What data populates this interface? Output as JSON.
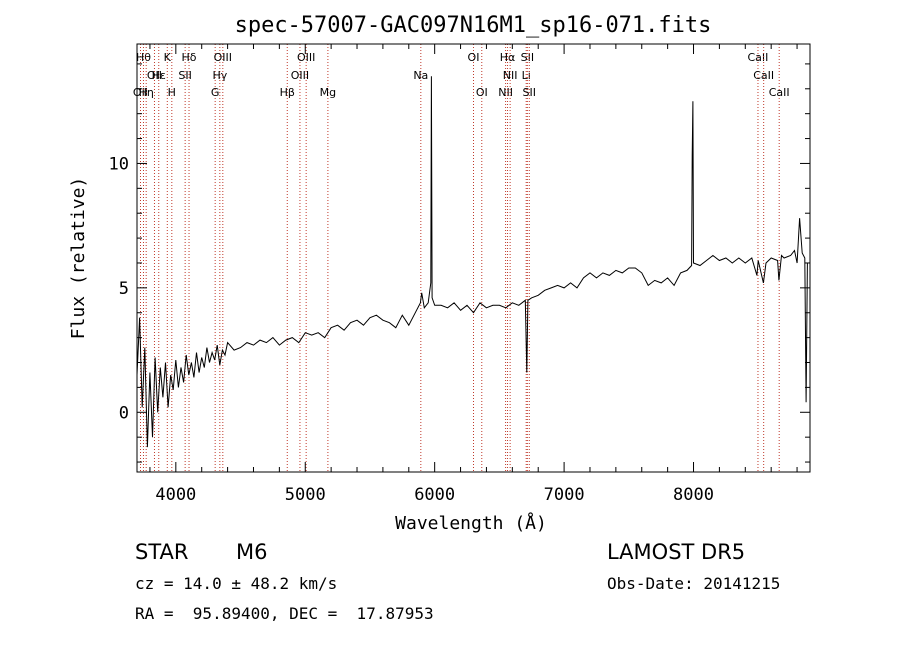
{
  "chart_data": {
    "type": "line",
    "title": "spec-57007-GAC097N16M1_sp16-071.fits",
    "xlabel": "Wavelength (Å)",
    "ylabel": "Flux (relative)",
    "xlim": [
      3700,
      8900
    ],
    "ylim": [
      -2.4,
      14.8
    ],
    "x_ticks": [
      4000,
      5000,
      6000,
      7000,
      8000
    ],
    "y_ticks": [
      0,
      5,
      10
    ],
    "grid": false,
    "line_color": "#000000",
    "marker_color": "#c0392b",
    "series": [
      {
        "points": [
          [
            3700,
            1.5
          ],
          [
            3720,
            3.8
          ],
          [
            3740,
            0.2
          ],
          [
            3760,
            2.6
          ],
          [
            3780,
            -1.4
          ],
          [
            3800,
            1.6
          ],
          [
            3820,
            -1.0
          ],
          [
            3840,
            2.2
          ],
          [
            3860,
            0.0
          ],
          [
            3880,
            1.8
          ],
          [
            3900,
            0.6
          ],
          [
            3920,
            2.0
          ],
          [
            3940,
            0.2
          ],
          [
            3960,
            1.5
          ],
          [
            3980,
            0.9
          ],
          [
            4000,
            2.1
          ],
          [
            4020,
            1.0
          ],
          [
            4040,
            1.8
          ],
          [
            4060,
            1.2
          ],
          [
            4080,
            2.3
          ],
          [
            4100,
            1.5
          ],
          [
            4120,
            2.0
          ],
          [
            4140,
            1.4
          ],
          [
            4160,
            2.4
          ],
          [
            4180,
            1.6
          ],
          [
            4200,
            2.2
          ],
          [
            4220,
            1.8
          ],
          [
            4240,
            2.6
          ],
          [
            4260,
            2.0
          ],
          [
            4280,
            2.4
          ],
          [
            4300,
            2.1
          ],
          [
            4320,
            2.7
          ],
          [
            4340,
            1.9
          ],
          [
            4360,
            2.5
          ],
          [
            4380,
            2.3
          ],
          [
            4400,
            2.8
          ],
          [
            4450,
            2.5
          ],
          [
            4500,
            2.6
          ],
          [
            4550,
            2.8
          ],
          [
            4600,
            2.7
          ],
          [
            4650,
            2.9
          ],
          [
            4700,
            2.8
          ],
          [
            4750,
            3.0
          ],
          [
            4800,
            2.7
          ],
          [
            4850,
            2.9
          ],
          [
            4900,
            3.0
          ],
          [
            4950,
            2.8
          ],
          [
            5000,
            3.2
          ],
          [
            5050,
            3.1
          ],
          [
            5100,
            3.2
          ],
          [
            5150,
            3.0
          ],
          [
            5200,
            3.4
          ],
          [
            5250,
            3.5
          ],
          [
            5300,
            3.3
          ],
          [
            5350,
            3.6
          ],
          [
            5400,
            3.7
          ],
          [
            5450,
            3.5
          ],
          [
            5500,
            3.8
          ],
          [
            5550,
            3.9
          ],
          [
            5600,
            3.7
          ],
          [
            5650,
            3.6
          ],
          [
            5700,
            3.4
          ],
          [
            5750,
            3.9
          ],
          [
            5800,
            3.5
          ],
          [
            5850,
            4.0
          ],
          [
            5890,
            4.4
          ],
          [
            5900,
            4.8
          ],
          [
            5920,
            4.2
          ],
          [
            5950,
            4.4
          ],
          [
            5970,
            5.2
          ],
          [
            5975,
            13.5
          ],
          [
            5980,
            4.6
          ],
          [
            6000,
            4.3
          ],
          [
            6050,
            4.3
          ],
          [
            6100,
            4.2
          ],
          [
            6150,
            4.4
          ],
          [
            6200,
            4.1
          ],
          [
            6250,
            4.3
          ],
          [
            6300,
            4.0
          ],
          [
            6350,
            4.4
          ],
          [
            6400,
            4.2
          ],
          [
            6450,
            4.3
          ],
          [
            6500,
            4.3
          ],
          [
            6550,
            4.2
          ],
          [
            6600,
            4.4
          ],
          [
            6650,
            4.3
          ],
          [
            6700,
            4.5
          ],
          [
            6712,
            1.6
          ],
          [
            6720,
            4.5
          ],
          [
            6750,
            4.6
          ],
          [
            6800,
            4.7
          ],
          [
            6850,
            4.9
          ],
          [
            6900,
            5.0
          ],
          [
            6950,
            5.1
          ],
          [
            7000,
            5.0
          ],
          [
            7050,
            5.2
          ],
          [
            7100,
            5.0
          ],
          [
            7150,
            5.4
          ],
          [
            7200,
            5.6
          ],
          [
            7250,
            5.4
          ],
          [
            7300,
            5.6
          ],
          [
            7350,
            5.5
          ],
          [
            7400,
            5.7
          ],
          [
            7450,
            5.6
          ],
          [
            7500,
            5.8
          ],
          [
            7550,
            5.8
          ],
          [
            7600,
            5.6
          ],
          [
            7650,
            5.1
          ],
          [
            7700,
            5.3
          ],
          [
            7750,
            5.2
          ],
          [
            7800,
            5.4
          ],
          [
            7850,
            5.1
          ],
          [
            7900,
            5.6
          ],
          [
            7950,
            5.7
          ],
          [
            7985,
            5.9
          ],
          [
            7990,
            10.3
          ],
          [
            7995,
            12.5
          ],
          [
            8000,
            6.0
          ],
          [
            8050,
            5.9
          ],
          [
            8100,
            6.1
          ],
          [
            8150,
            6.3
          ],
          [
            8200,
            6.1
          ],
          [
            8250,
            6.2
          ],
          [
            8300,
            6.0
          ],
          [
            8350,
            6.2
          ],
          [
            8400,
            6.0
          ],
          [
            8450,
            6.2
          ],
          [
            8490,
            5.5
          ],
          [
            8500,
            6.1
          ],
          [
            8540,
            5.2
          ],
          [
            8560,
            6.0
          ],
          [
            8600,
            6.2
          ],
          [
            8650,
            6.1
          ],
          [
            8660,
            5.3
          ],
          [
            8680,
            6.3
          ],
          [
            8700,
            6.2
          ],
          [
            8750,
            6.3
          ],
          [
            8780,
            6.5
          ],
          [
            8800,
            6.0
          ],
          [
            8820,
            7.8
          ],
          [
            8840,
            6.4
          ],
          [
            8860,
            6.2
          ],
          [
            8870,
            0.4
          ],
          [
            8880,
            6.0
          ]
        ]
      }
    ],
    "line_markers": [
      {
        "x": 3727,
        "label": "OII",
        "row": 2
      },
      {
        "x": 3750,
        "label": "Hθ",
        "row": 0
      },
      {
        "x": 3771,
        "label": "Hη",
        "row": 2
      },
      {
        "x": 3835,
        "label": "OII",
        "row": 1
      },
      {
        "x": 3868,
        "label": "Hε",
        "row": 1
      },
      {
        "x": 3934,
        "label": "K",
        "row": 0
      },
      {
        "x": 3969,
        "label": "H",
        "row": 2
      },
      {
        "x": 4072,
        "label": "SII",
        "row": 1
      },
      {
        "x": 4102,
        "label": "Hδ",
        "row": 0
      },
      {
        "x": 4304,
        "label": "G",
        "row": 2
      },
      {
        "x": 4340,
        "label": "Hγ",
        "row": 1
      },
      {
        "x": 4363,
        "label": "OIII",
        "row": 0
      },
      {
        "x": 4861,
        "label": "Hβ",
        "row": 2
      },
      {
        "x": 4959,
        "label": "OIII",
        "row": 1
      },
      {
        "x": 5007,
        "label": "OIII",
        "row": 0
      },
      {
        "x": 5175,
        "label": "Mg",
        "row": 2
      },
      {
        "x": 5893,
        "label": "Na",
        "row": 1
      },
      {
        "x": 6300,
        "label": "OI",
        "row": 0
      },
      {
        "x": 6364,
        "label": "OI",
        "row": 2
      },
      {
        "x": 6548,
        "label": "NII",
        "row": 2
      },
      {
        "x": 6563,
        "label": "Hα",
        "row": 0
      },
      {
        "x": 6583,
        "label": "NII",
        "row": 1
      },
      {
        "x": 6707,
        "label": "Li",
        "row": 1
      },
      {
        "x": 6716,
        "label": "SII",
        "row": 0
      },
      {
        "x": 6731,
        "label": "SII",
        "row": 2
      },
      {
        "x": 8498,
        "label": "CaII",
        "row": 0
      },
      {
        "x": 8542,
        "label": "CaII",
        "row": 1
      },
      {
        "x": 8662,
        "label": "CaII",
        "row": 2
      }
    ]
  },
  "info": {
    "object_class": "STAR",
    "subclass": "M6",
    "survey": "LAMOST DR5",
    "redshift": "cz = 14.0 ± 48.2 km/s",
    "obs_date": "Obs-Date: 20141215",
    "coords": "RA =  95.89400, DEC =  17.87953"
  }
}
